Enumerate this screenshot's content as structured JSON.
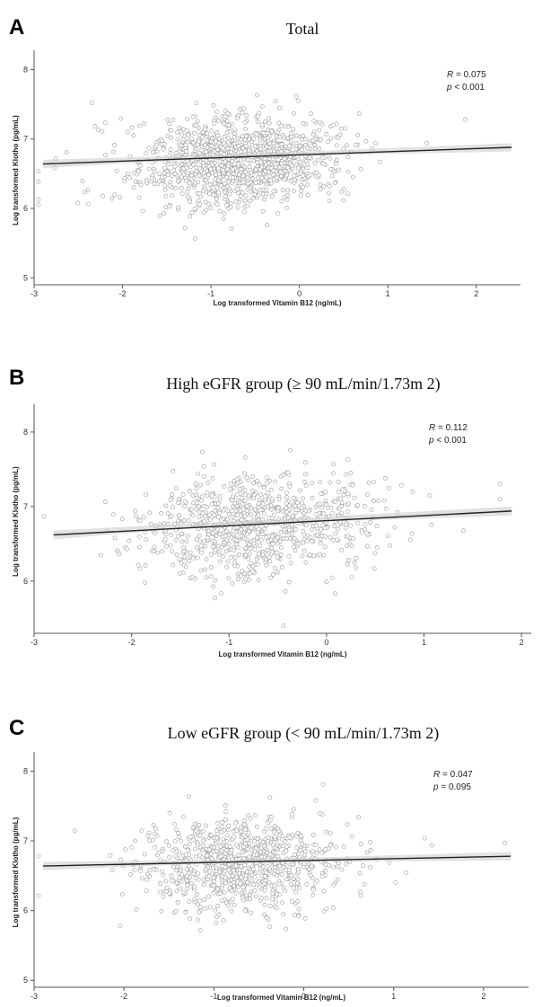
{
  "chart_data": [
    {
      "type": "scatter",
      "panel": "A",
      "title": "Total",
      "xlabel": "Log transformed Vitamin B12 (ng/mL)",
      "ylabel": "Log transformed Klotho (pg/mL)",
      "xlim": [
        -3.0,
        2.5
      ],
      "ylim": [
        4.9,
        8.2
      ],
      "xticks": [
        -3,
        -2,
        -1,
        0,
        1,
        2
      ],
      "yticks": [
        5,
        6,
        7,
        8
      ],
      "stats": {
        "r_label": "R",
        "r_value": "= 0.075",
        "p_label": "p",
        "p_value": "< 0.001"
      },
      "fit_line": {
        "x": [
          -2.9,
          2.4
        ],
        "y": [
          6.64,
          6.88
        ]
      },
      "n_points": 1200,
      "point_cloud": {
        "x_center": -0.7,
        "x_sd": 0.55,
        "y_center": 6.7,
        "y_sd": 0.33
      },
      "grid": false
    },
    {
      "type": "scatter",
      "panel": "B",
      "title": "High eGFR group (≥ 90 mL/min/1.73m 2)",
      "xlabel": "Log transformed Vitamin B12 (ng/mL)",
      "ylabel": "Log transformed Klotho (pg/mL)",
      "xlim": [
        -3.0,
        2.1
      ],
      "ylim": [
        5.3,
        8.3
      ],
      "xticks": [
        -3,
        -2,
        -1,
        0,
        1,
        2
      ],
      "yticks": [
        6,
        7,
        8
      ],
      "stats": {
        "r_label": "R",
        "r_value": "= 0.112",
        "p_label": "p",
        "p_value": "< 0.001"
      },
      "fit_line": {
        "x": [
          -2.8,
          1.9
        ],
        "y": [
          6.62,
          6.94
        ]
      },
      "n_points": 900,
      "point_cloud": {
        "x_center": -0.7,
        "x_sd": 0.55,
        "y_center": 6.75,
        "y_sd": 0.33
      },
      "grid": false
    },
    {
      "type": "scatter",
      "panel": "C",
      "title": "Low eGFR group (< 90 mL/min/1.73m 2)",
      "xlabel": "Log transformed Vitamin B12 (ng/mL)",
      "ylabel": "Log transformed Klotho (pg/mL)",
      "xlim": [
        -3.0,
        2.5
      ],
      "ylim": [
        4.9,
        8.2
      ],
      "xticks": [
        -3,
        -2,
        -1,
        0,
        1,
        2
      ],
      "yticks": [
        5,
        6,
        7,
        8
      ],
      "stats": {
        "r_label": "R",
        "r_value": "= 0.047",
        "p_label": "p",
        "p_value": "= 0.095"
      },
      "fit_line": {
        "x": [
          -2.9,
          2.3
        ],
        "y": [
          6.64,
          6.78
        ]
      },
      "n_points": 900,
      "point_cloud": {
        "x_center": -0.7,
        "x_sd": 0.55,
        "y_center": 6.68,
        "y_sd": 0.33
      },
      "grid": false
    }
  ]
}
